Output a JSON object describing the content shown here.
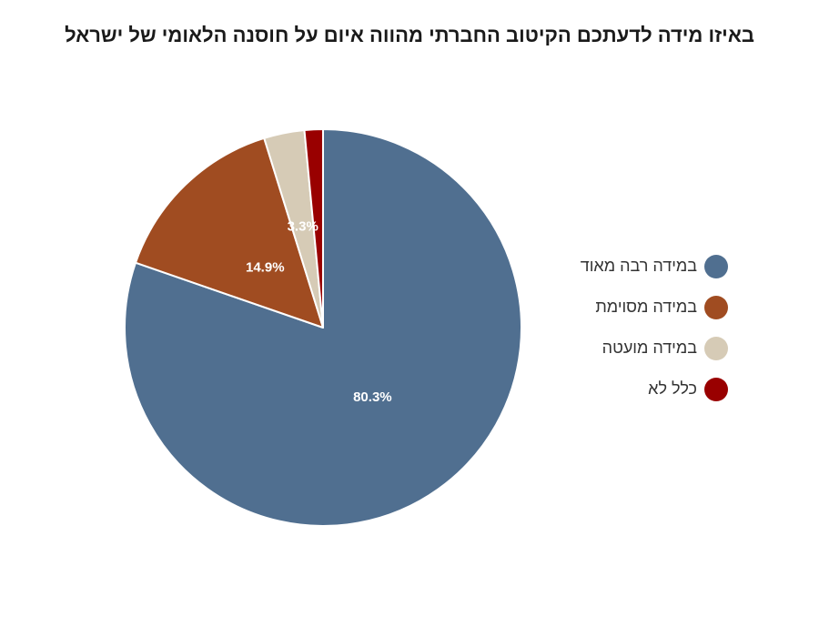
{
  "chart_data": {
    "type": "pie",
    "title": "באיזו מידה לדעתכם הקיטוב החברתי  מהווה איום על חוסנה הלאומי של ישראל",
    "categories": [
      "במידה רבה מאוד",
      "במידה מסוימת",
      "במידה מועטה",
      "כלל לא"
    ],
    "values": [
      80.3,
      14.9,
      3.3,
      1.5
    ],
    "data_labels": [
      "80.3%",
      "14.9%",
      "3.3%",
      ""
    ],
    "colors": [
      "#506f90",
      "#a04c21",
      "#d6cbb6",
      "#990000"
    ],
    "legend_position": "right"
  }
}
